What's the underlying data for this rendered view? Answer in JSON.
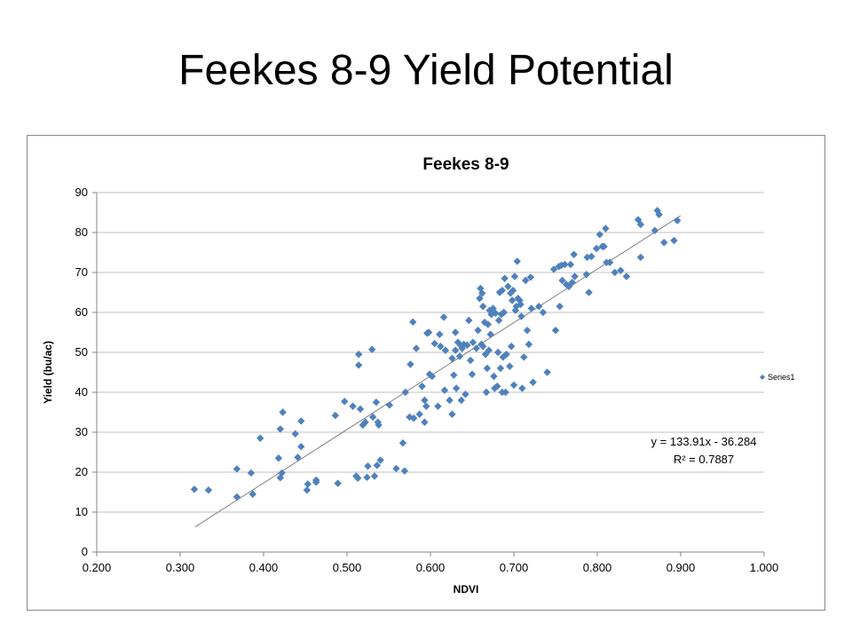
{
  "slide": {
    "title": "Feekes 8-9 Yield Potential"
  },
  "chart_data": {
    "type": "scatter",
    "title": "Feekes 8-9",
    "xlabel": "NDVI",
    "ylabel": "Yield (bu/ac)",
    "xlim": [
      0.2,
      1.0
    ],
    "ylim": [
      0,
      90
    ],
    "xticks": [
      "0.200",
      "0.300",
      "0.400",
      "0.500",
      "0.600",
      "0.700",
      "0.800",
      "0.900",
      "1.000"
    ],
    "yticks": [
      "0",
      "10",
      "20",
      "30",
      "40",
      "50",
      "60",
      "70",
      "80",
      "90"
    ],
    "grid": "horizontal",
    "legend": {
      "position": "right",
      "entries": [
        "Series1"
      ]
    },
    "marker_color": "#4f81bd",
    "trendline": {
      "slope": 133.91,
      "intercept": -36.284,
      "x_range": [
        0.318,
        0.9
      ],
      "equation": "y = 133.91x - 36.284",
      "r2": "R² = 0.7887"
    },
    "series": [
      {
        "name": "Series1",
        "points": [
          [
            0.317,
            15.7
          ],
          [
            0.334,
            15.5
          ],
          [
            0.368,
            20.8
          ],
          [
            0.368,
            13.8
          ],
          [
            0.385,
            19.8
          ],
          [
            0.387,
            14.5
          ],
          [
            0.396,
            28.5
          ],
          [
            0.418,
            23.5
          ],
          [
            0.42,
            30.8
          ],
          [
            0.42,
            18.6
          ],
          [
            0.422,
            19.8
          ],
          [
            0.423,
            35.0
          ],
          [
            0.438,
            29.6
          ],
          [
            0.441,
            23.7
          ],
          [
            0.445,
            32.8
          ],
          [
            0.445,
            26.4
          ],
          [
            0.452,
            15.5
          ],
          [
            0.453,
            17.0
          ],
          [
            0.463,
            18.0
          ],
          [
            0.463,
            17.5
          ],
          [
            0.486,
            34.2
          ],
          [
            0.489,
            17.2
          ],
          [
            0.497,
            37.7
          ],
          [
            0.507,
            36.5
          ],
          [
            0.511,
            19.0
          ],
          [
            0.513,
            18.5
          ],
          [
            0.514,
            49.5
          ],
          [
            0.514,
            46.8
          ],
          [
            0.516,
            35.8
          ],
          [
            0.519,
            31.8
          ],
          [
            0.522,
            32.5
          ],
          [
            0.524,
            18.7
          ],
          [
            0.525,
            21.5
          ],
          [
            0.53,
            50.7
          ],
          [
            0.531,
            33.8
          ],
          [
            0.533,
            19.0
          ],
          [
            0.535,
            37.5
          ],
          [
            0.536,
            21.7
          ],
          [
            0.537,
            32.5
          ],
          [
            0.538,
            31.8
          ],
          [
            0.54,
            23.0
          ],
          [
            0.551,
            36.8
          ],
          [
            0.559,
            20.9
          ],
          [
            0.567,
            27.3
          ],
          [
            0.569,
            20.3
          ],
          [
            0.57,
            40.0
          ],
          [
            0.575,
            33.8
          ],
          [
            0.576,
            47.0
          ],
          [
            0.579,
            57.6
          ],
          [
            0.58,
            33.5
          ],
          [
            0.583,
            51.0
          ],
          [
            0.587,
            34.5
          ],
          [
            0.59,
            41.5
          ],
          [
            0.593,
            32.5
          ],
          [
            0.593,
            38.0
          ],
          [
            0.595,
            36.5
          ],
          [
            0.596,
            54.8
          ],
          [
            0.598,
            55.0
          ],
          [
            0.599,
            44.5
          ],
          [
            0.602,
            44.0
          ],
          [
            0.605,
            52.2
          ],
          [
            0.609,
            36.5
          ],
          [
            0.611,
            54.5
          ],
          [
            0.612,
            51.5
          ],
          [
            0.616,
            58.8
          ],
          [
            0.617,
            40.5
          ],
          [
            0.618,
            50.5
          ],
          [
            0.623,
            38.0
          ],
          [
            0.626,
            48.5
          ],
          [
            0.626,
            34.5
          ],
          [
            0.628,
            44.3
          ],
          [
            0.63,
            55.0
          ],
          [
            0.63,
            50.5
          ],
          [
            0.631,
            41.0
          ],
          [
            0.633,
            52.5
          ],
          [
            0.635,
            49.0
          ],
          [
            0.636,
            51.8
          ],
          [
            0.637,
            38.0
          ],
          [
            0.638,
            51.0
          ],
          [
            0.64,
            52.0
          ],
          [
            0.642,
            39.5
          ],
          [
            0.644,
            51.8
          ],
          [
            0.646,
            58.0
          ],
          [
            0.648,
            48.0
          ],
          [
            0.65,
            44.5
          ],
          [
            0.651,
            52.5
          ],
          [
            0.655,
            51.0
          ],
          [
            0.657,
            55.5
          ],
          [
            0.659,
            63.5
          ],
          [
            0.66,
            66.0
          ],
          [
            0.661,
            52.0
          ],
          [
            0.662,
            64.8
          ],
          [
            0.663,
            51.5
          ],
          [
            0.663,
            61.5
          ],
          [
            0.665,
            57.5
          ],
          [
            0.666,
            49.5
          ],
          [
            0.667,
            40.0
          ],
          [
            0.668,
            46.0
          ],
          [
            0.669,
            57.0
          ],
          [
            0.67,
            50.5
          ],
          [
            0.671,
            60.5
          ],
          [
            0.672,
            54.5
          ],
          [
            0.673,
            59.5
          ],
          [
            0.675,
            61.0
          ],
          [
            0.676,
            44.0
          ],
          [
            0.677,
            41.0
          ],
          [
            0.678,
            59.8
          ],
          [
            0.68,
            41.5
          ],
          [
            0.681,
            50.0
          ],
          [
            0.682,
            58.0
          ],
          [
            0.683,
            65.0
          ],
          [
            0.684,
            46.0
          ],
          [
            0.685,
            59.5
          ],
          [
            0.686,
            40.0
          ],
          [
            0.686,
            65.5
          ],
          [
            0.687,
            48.8
          ],
          [
            0.688,
            60.0
          ],
          [
            0.689,
            68.5
          ],
          [
            0.69,
            40.0
          ],
          [
            0.691,
            49.5
          ],
          [
            0.693,
            66.5
          ],
          [
            0.695,
            46.5
          ],
          [
            0.696,
            64.8
          ],
          [
            0.697,
            51.5
          ],
          [
            0.698,
            63.0
          ],
          [
            0.699,
            65.5
          ],
          [
            0.7,
            41.8
          ],
          [
            0.701,
            69.0
          ],
          [
            0.702,
            60.5
          ],
          [
            0.703,
            61.5
          ],
          [
            0.704,
            72.8
          ],
          [
            0.705,
            63.5
          ],
          [
            0.707,
            63.0
          ],
          [
            0.708,
            62.0
          ],
          [
            0.709,
            59.0
          ],
          [
            0.71,
            41.0
          ],
          [
            0.712,
            48.8
          ],
          [
            0.714,
            68.0
          ],
          [
            0.716,
            55.5
          ],
          [
            0.718,
            52.0
          ],
          [
            0.72,
            68.8
          ],
          [
            0.721,
            61.0
          ],
          [
            0.723,
            42.5
          ],
          [
            0.73,
            61.5
          ],
          [
            0.735,
            60.0
          ],
          [
            0.74,
            45.0
          ],
          [
            0.748,
            70.8
          ],
          [
            0.75,
            55.5
          ],
          [
            0.754,
            71.5
          ],
          [
            0.755,
            61.5
          ],
          [
            0.757,
            71.8
          ],
          [
            0.758,
            68.0
          ],
          [
            0.761,
            72.0
          ],
          [
            0.763,
            67.0
          ],
          [
            0.766,
            66.5
          ],
          [
            0.768,
            72.0
          ],
          [
            0.77,
            67.5
          ],
          [
            0.772,
            74.5
          ],
          [
            0.773,
            69.0
          ],
          [
            0.787,
            69.5
          ],
          [
            0.788,
            73.8
          ],
          [
            0.79,
            65.0
          ],
          [
            0.793,
            74.0
          ],
          [
            0.799,
            76.0
          ],
          [
            0.803,
            79.5
          ],
          [
            0.806,
            76.5
          ],
          [
            0.808,
            76.5
          ],
          [
            0.81,
            81.0
          ],
          [
            0.811,
            72.5
          ],
          [
            0.815,
            72.5
          ],
          [
            0.821,
            70.0
          ],
          [
            0.828,
            70.5
          ],
          [
            0.835,
            69.0
          ],
          [
            0.849,
            83.2
          ],
          [
            0.852,
            82.0
          ],
          [
            0.852,
            73.8
          ],
          [
            0.869,
            80.5
          ],
          [
            0.872,
            85.5
          ],
          [
            0.874,
            84.5
          ],
          [
            0.88,
            77.5
          ],
          [
            0.892,
            78.0
          ],
          [
            0.896,
            83.0
          ]
        ]
      }
    ]
  }
}
